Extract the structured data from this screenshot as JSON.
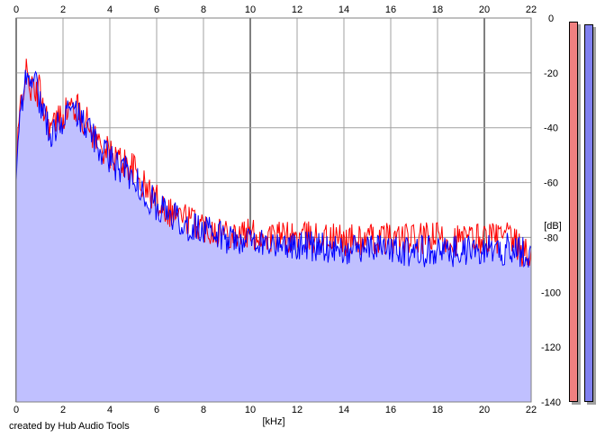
{
  "chart_data": {
    "type": "area",
    "xlabel": "[kHz]",
    "ylabel": "[dB]",
    "xlim": [
      0,
      22
    ],
    "ylim": [
      -140,
      0
    ],
    "x_ticks": [
      "0",
      "2",
      "4",
      "6",
      "8",
      "10",
      "12",
      "14",
      "16",
      "18",
      "20",
      "22"
    ],
    "y_ticks": [
      "0",
      "-20",
      "-40",
      "-60",
      "-80",
      "-100",
      "-120",
      "-140"
    ],
    "grid": true,
    "series": [
      {
        "color": "#ff0000",
        "x": [
          0,
          0.2,
          0.4,
          0.6,
          0.8,
          1.0,
          1.2,
          1.5,
          2.0,
          2.5,
          3.0,
          3.5,
          4.0,
          4.5,
          5.0,
          5.5,
          6.0,
          6.5,
          7.0,
          7.5,
          8.0,
          9.0,
          10.0,
          11.0,
          12.0,
          13.0,
          14.0,
          15.0,
          16.0,
          17.0,
          18.0,
          19.0,
          20.0,
          21.0,
          22.0
        ],
        "y": [
          -55,
          -30,
          -20,
          -25,
          -28,
          -26,
          -33,
          -40,
          -35,
          -32,
          -38,
          -45,
          -50,
          -52,
          -55,
          -62,
          -66,
          -70,
          -72,
          -74,
          -76,
          -78,
          -79,
          -80,
          -80,
          -80,
          -81,
          -81,
          -80,
          -81,
          -80,
          -81,
          -80,
          -80,
          -88
        ]
      },
      {
        "color": "#0000ff",
        "x": [
          0,
          0.2,
          0.4,
          0.6,
          0.8,
          1.0,
          1.2,
          1.5,
          2.0,
          2.5,
          3.0,
          3.5,
          4.0,
          4.5,
          5.0,
          5.5,
          6.0,
          6.5,
          7.0,
          7.5,
          8.0,
          9.0,
          10.0,
          11.0,
          12.0,
          13.0,
          14.0,
          15.0,
          16.0,
          17.0,
          18.0,
          19.0,
          20.0,
          21.0,
          22.0
        ],
        "y": [
          -60,
          -32,
          -24,
          -22,
          -20,
          -30,
          -35,
          -42,
          -36,
          -34,
          -40,
          -46,
          -52,
          -55,
          -58,
          -64,
          -68,
          -72,
          -74,
          -76,
          -78,
          -80,
          -81,
          -82,
          -83,
          -83,
          -84,
          -84,
          -84,
          -85,
          -85,
          -85,
          -85,
          -84,
          -86
        ]
      }
    ]
  },
  "credit": "created by Hub Audio Tools",
  "meters": [
    {
      "color": "#f08080"
    },
    {
      "color": "#8080f0"
    }
  ],
  "colors": {
    "fill": "#c0c0ff",
    "grid": "#a0a0a0",
    "grid_major": "#808080"
  }
}
